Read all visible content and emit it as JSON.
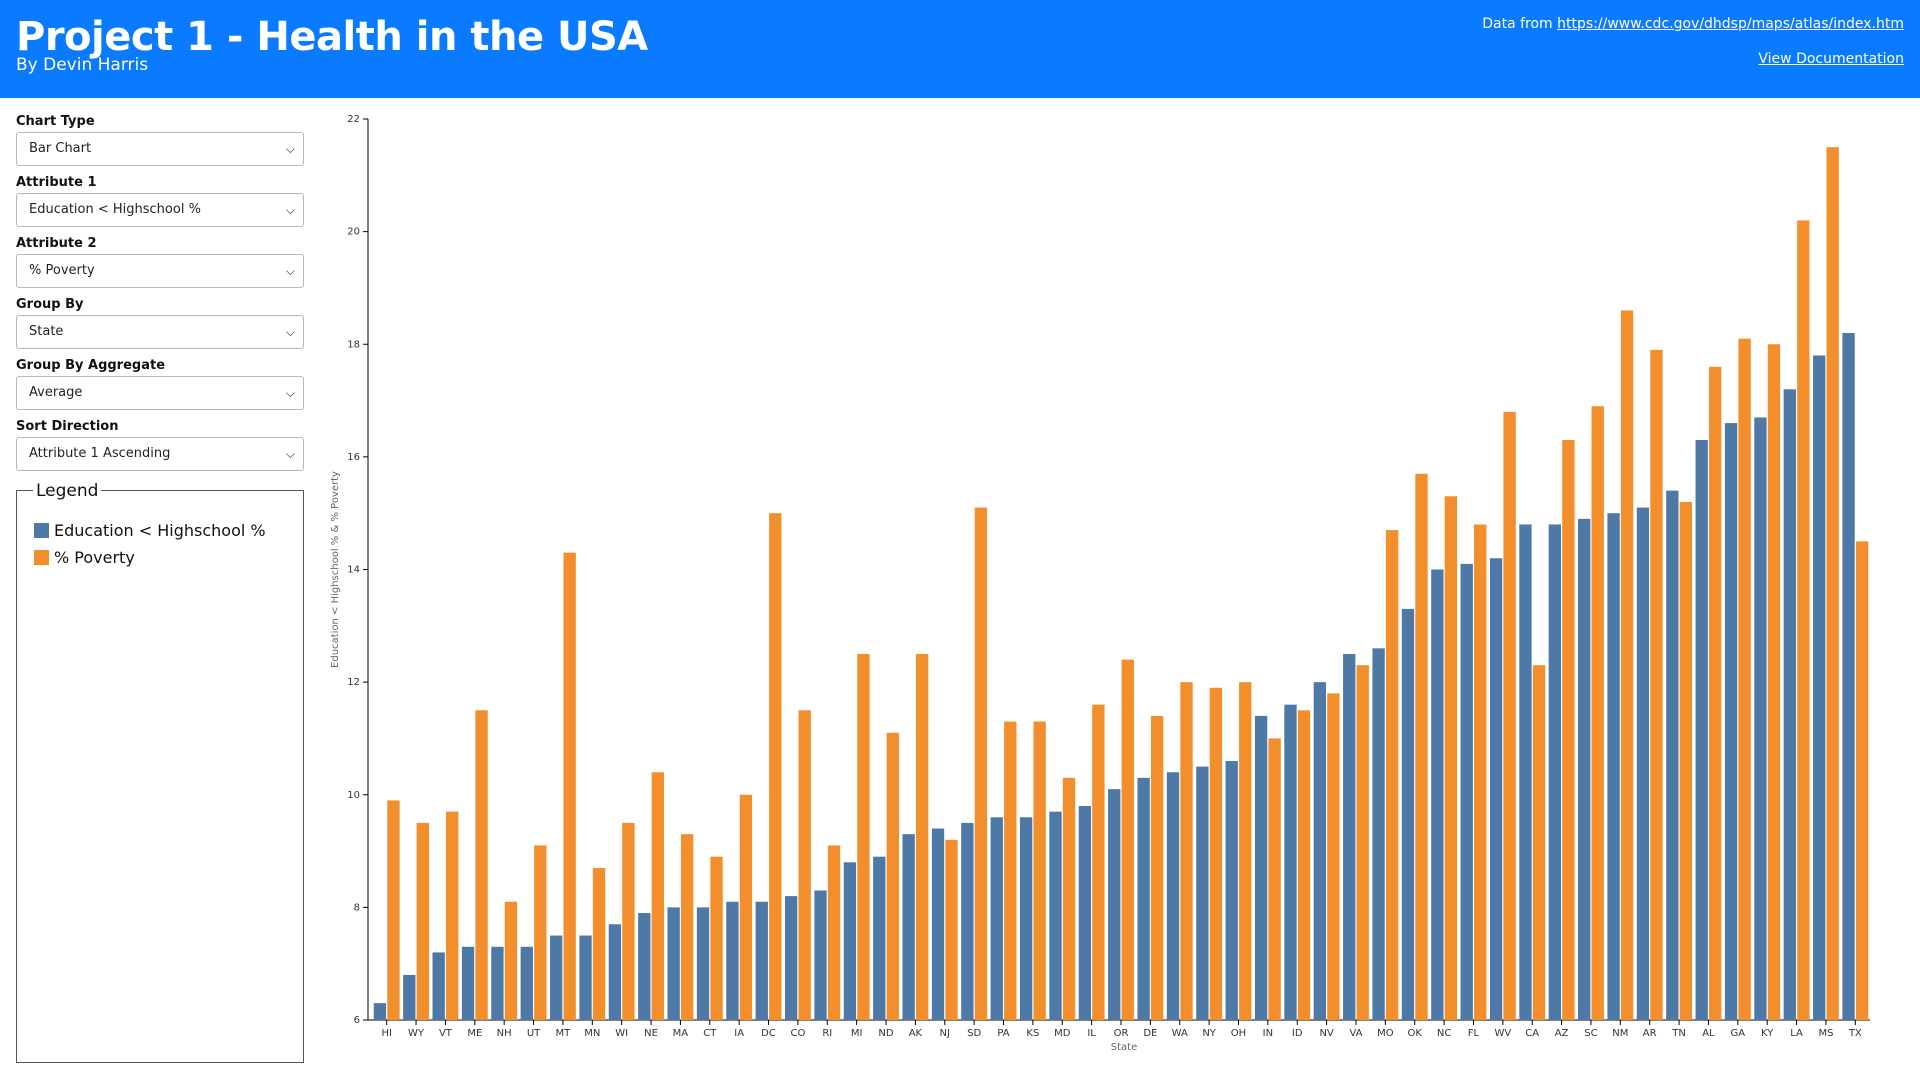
{
  "header": {
    "title": "Project 1 - Health in the USA",
    "author": "By Devin Harris",
    "source_prefix": "Data from ",
    "source_url": "https://www.cdc.gov/dhdsp/maps/atlas/index.htm",
    "documentation_link": "View Documentation"
  },
  "controls": {
    "chart_type": {
      "label": "Chart Type",
      "value": "Bar Chart"
    },
    "attribute1": {
      "label": "Attribute 1",
      "value": "Education < Highschool %"
    },
    "attribute2": {
      "label": "Attribute 2",
      "value": "% Poverty"
    },
    "group_by": {
      "label": "Group By",
      "value": "State"
    },
    "group_by_aggregate": {
      "label": "Group By Aggregate",
      "value": "Average"
    },
    "sort_direction": {
      "label": "Sort Direction",
      "value": "Attribute 1 Ascending"
    }
  },
  "legend": {
    "title": "Legend",
    "items": [
      {
        "label": "Education < Highschool %",
        "color": "#4e79a7"
      },
      {
        "label": "% Poverty",
        "color": "#f28e2b"
      }
    ]
  },
  "chart_data": {
    "type": "bar",
    "xlabel": "State",
    "ylabel": "Education < Highschool % & % Poverty",
    "ylim": [
      6,
      22
    ],
    "yticks": [
      6,
      8,
      10,
      12,
      14,
      16,
      18,
      20,
      22
    ],
    "categories": [
      "HI",
      "WY",
      "VT",
      "ME",
      "NH",
      "UT",
      "MT",
      "MN",
      "WI",
      "NE",
      "MA",
      "CT",
      "IA",
      "DC",
      "CO",
      "RI",
      "MI",
      "ND",
      "AK",
      "NJ",
      "SD",
      "PA",
      "KS",
      "MD",
      "IL",
      "OR",
      "DE",
      "WA",
      "NY",
      "OH",
      "IN",
      "ID",
      "NV",
      "VA",
      "MO",
      "OK",
      "NC",
      "FL",
      "WV",
      "CA",
      "AZ",
      "SC",
      "NM",
      "AR",
      "TN",
      "AL",
      "GA",
      "KY",
      "LA",
      "MS",
      "TX"
    ],
    "series": [
      {
        "name": "Education < Highschool %",
        "color": "#4e79a7",
        "values": [
          6.3,
          6.8,
          7.2,
          7.3,
          7.3,
          7.3,
          7.5,
          7.5,
          7.7,
          7.9,
          8.0,
          8.0,
          8.1,
          8.1,
          8.2,
          8.3,
          8.8,
          8.9,
          9.3,
          9.4,
          9.5,
          9.6,
          9.6,
          9.7,
          9.8,
          10.1,
          10.3,
          10.4,
          10.5,
          10.6,
          11.4,
          11.6,
          12.0,
          12.5,
          12.6,
          13.3,
          14.0,
          14.1,
          14.2,
          14.8,
          14.8,
          14.9,
          15.0,
          15.1,
          15.4,
          16.3,
          16.6,
          16.7,
          17.2,
          17.8,
          18.2
        ]
      },
      {
        "name": "% Poverty",
        "color": "#f28e2b",
        "values": [
          9.9,
          9.5,
          9.7,
          11.5,
          8.1,
          9.1,
          14.3,
          8.7,
          9.5,
          10.4,
          9.3,
          8.9,
          10.0,
          15.0,
          11.5,
          9.1,
          12.5,
          11.1,
          12.5,
          9.2,
          15.1,
          11.3,
          11.3,
          10.3,
          11.6,
          12.4,
          11.4,
          12.0,
          11.9,
          12.0,
          11.0,
          11.5,
          11.8,
          12.3,
          14.7,
          15.7,
          15.3,
          14.8,
          16.8,
          12.3,
          16.3,
          16.9,
          18.6,
          17.9,
          15.2,
          17.6,
          18.1,
          18.0,
          20.2,
          21.5,
          14.5
        ]
      }
    ]
  }
}
